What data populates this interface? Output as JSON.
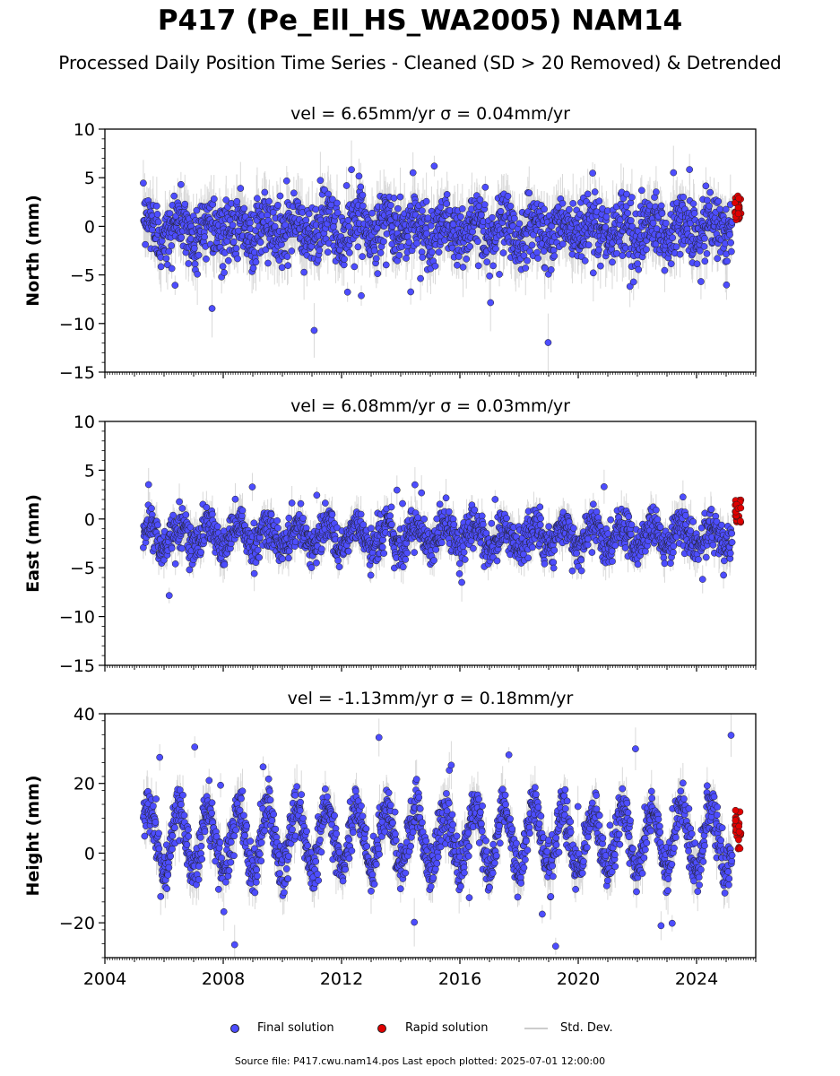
{
  "title": "P417 (Pe_Ell_HS_WA2005) NAM14",
  "subtitle": "Processed Daily Position Time Series - Cleaned (SD > 20 Removed) & Detrended",
  "source_note": "Source file: P417.cwu.nam14.pos  Last epoch plotted: 2025-07-01 12:00:00",
  "legend": {
    "final": "Final solution",
    "rapid": "Rapid solution",
    "std": "Std. Dev."
  },
  "colors": {
    "final": "#4d4dff",
    "rapid": "#e00000",
    "std": "#bbbbbb",
    "edge": "#202020"
  },
  "chart_data": [
    {
      "type": "scatter",
      "title": "vel = 6.65mm/yr   σ = 0.04mm/yr",
      "ylabel": "North (mm)",
      "xlim": [
        2004,
        2026
      ],
      "ylim": [
        -15,
        10
      ],
      "yticks": [
        -15,
        -10,
        -5,
        0,
        5,
        10
      ],
      "xticks": [
        2004,
        2008,
        2012,
        2016,
        2020,
        2024
      ],
      "show_xtick_labels": false,
      "series_start": 2005.3,
      "series_end": 2025.2,
      "rapid_start": 2025.3,
      "rapid_end": 2025.5,
      "center": -0.3,
      "scatter": 1.6,
      "seasonal": 1.0,
      "outlier_range": [
        -12.3,
        7.0
      ],
      "rapid_range": [
        0.5,
        3.3
      ]
    },
    {
      "type": "scatter",
      "title": "vel = 6.08mm/yr   σ = 0.03mm/yr",
      "ylabel": "East (mm)",
      "xlim": [
        2004,
        2026
      ],
      "ylim": [
        -15,
        10
      ],
      "yticks": [
        -15,
        -10,
        -5,
        0,
        5,
        10
      ],
      "xticks": [
        2004,
        2008,
        2012,
        2016,
        2020,
        2024
      ],
      "show_xtick_labels": false,
      "series_start": 2005.3,
      "series_end": 2025.2,
      "rapid_start": 2025.3,
      "rapid_end": 2025.5,
      "center": -1.8,
      "scatter": 1.0,
      "seasonal": 1.2,
      "outlier_range": [
        -8.2,
        3.8
      ],
      "rapid_range": [
        -0.5,
        2.0
      ]
    },
    {
      "type": "scatter",
      "title": "vel = -1.13mm/yr   σ = 0.18mm/yr",
      "ylabel": "Height (mm)",
      "xlim": [
        2004,
        2026
      ],
      "ylim": [
        -30,
        40
      ],
      "yticks": [
        -20,
        0,
        20,
        40
      ],
      "xticks": [
        2004,
        2008,
        2012,
        2016,
        2020,
        2024
      ],
      "show_xtick_labels": true,
      "series_start": 2005.3,
      "series_end": 2025.2,
      "rapid_start": 2025.3,
      "rapid_end": 2025.5,
      "center": 4.0,
      "scatter": 3.5,
      "seasonal": 9.0,
      "outlier_range": [
        -27.0,
        35.0
      ],
      "rapid_range": [
        1.0,
        12.5
      ]
    }
  ]
}
